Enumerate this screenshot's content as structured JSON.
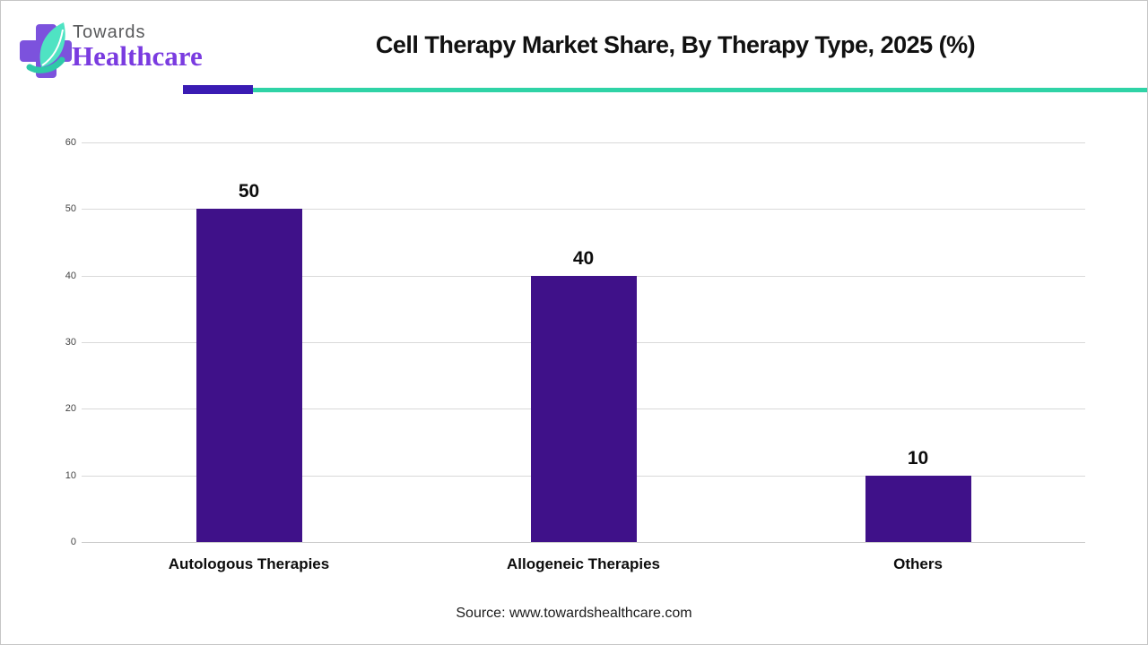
{
  "header": {
    "logo": {
      "word1": "Towards",
      "word2": "Healthcare",
      "colors": {
        "cross": "#7c52dd",
        "leaf": "#4fe3c3",
        "leaf_dark": "#2fc9a8",
        "word1": "#58595b",
        "word2": "#7a3be0"
      }
    },
    "divider_colors": {
      "purple": "#3a1bb3",
      "teal": "#2fd3a6"
    }
  },
  "chart_data": {
    "type": "bar",
    "title": "Cell Therapy Market Share, By Therapy Type, 2025 (%)",
    "categories": [
      "Autologous Therapies",
      "Allogeneic Therapies",
      "Others"
    ],
    "values": [
      50,
      40,
      10
    ],
    "bar_color": "#3f1189",
    "xlabel": "",
    "ylabel": "",
    "ylim": [
      0,
      60
    ],
    "yticks": [
      0,
      10,
      20,
      30,
      40,
      50,
      60
    ],
    "grid": true,
    "legend": false,
    "data_labels": true
  },
  "footer": {
    "source": "Source: www.towardshealthcare.com"
  }
}
